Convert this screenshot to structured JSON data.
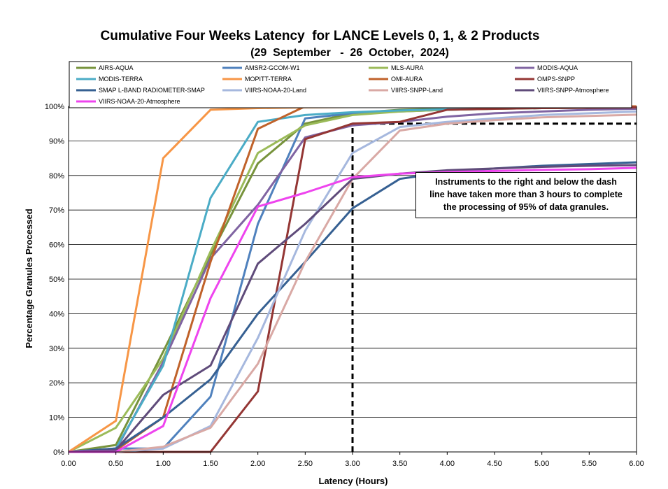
{
  "chart_data": {
    "type": "line",
    "title": "Cumulative Four Weeks Latency  for LANCE Levels 0, 1, & 2 Products",
    "subtitle": "(29  September   -  26  October,  2024)",
    "xlabel": "Latency (Hours)",
    "ylabel": "Percentage Granules Processed",
    "xlim": [
      0,
      6
    ],
    "ylim": [
      0,
      100
    ],
    "x_ticks": [
      "0.00",
      "0.50",
      "1.00",
      "1.50",
      "2.00",
      "2.50",
      "3.00",
      "3.50",
      "4.00",
      "4.50",
      "5.00",
      "5.50",
      "6.00"
    ],
    "y_ticks": [
      "0%",
      "10%",
      "20%",
      "30%",
      "40%",
      "50%",
      "60%",
      "70%",
      "80%",
      "90%",
      "100%"
    ],
    "grid": "horizontal",
    "legend_position": "top",
    "x": [
      0,
      0.5,
      1.0,
      1.5,
      2.0,
      2.5,
      3.0,
      3.5,
      4.0,
      4.5,
      5.0,
      5.5,
      6.0
    ],
    "series": [
      {
        "name": "AIRS-AQUA",
        "color": "#77933c",
        "values": [
          0,
          2,
          29,
          57,
          83.5,
          95,
          98,
          99,
          99.4,
          99.6,
          99.7,
          99.8,
          99.9
        ]
      },
      {
        "name": "AMSR2-GCOM-W1",
        "color": "#4f81bd",
        "values": [
          0,
          1,
          1,
          16,
          66,
          96.5,
          98,
          98.5,
          99,
          99.3,
          99.5,
          99.6,
          99.7
        ]
      },
      {
        "name": "MLS-AURA",
        "color": "#9bbb59",
        "values": [
          0,
          7,
          27,
          58,
          86.5,
          94.5,
          97.5,
          98.5,
          99,
          99.3,
          99.5,
          99.6,
          99.7
        ]
      },
      {
        "name": "MODIS-AQUA",
        "color": "#8064a2",
        "values": [
          0,
          0.5,
          26,
          56,
          71.5,
          91,
          94.5,
          95.5,
          97,
          98,
          98.5,
          99,
          99.3
        ]
      },
      {
        "name": "MODIS-TERRA",
        "color": "#4bacc6",
        "values": [
          0,
          1,
          25,
          73.5,
          95.5,
          97.5,
          98.3,
          98.8,
          99.2,
          99.4,
          99.6,
          99.7,
          99.8
        ]
      },
      {
        "name": "MOPITT-TERRA",
        "color": "#f79646",
        "values": [
          0,
          9,
          85,
          99,
          99.5,
          99.7,
          99.8,
          99.9,
          99.9,
          100,
          100,
          100,
          100
        ]
      },
      {
        "name": "OMI-AURA",
        "color": "#c0622a",
        "values": [
          0,
          0.5,
          10,
          55,
          93.5,
          100,
          100,
          100,
          100,
          100,
          100,
          100,
          100
        ]
      },
      {
        "name": "OMPS-SNPP",
        "color": "#943634",
        "values": [
          0,
          0,
          0,
          0,
          17.5,
          90.5,
          95,
          95.5,
          99,
          99.3,
          99.5,
          99.6,
          99.7
        ]
      },
      {
        "name": "SMAP L-BAND RADIOMETER-SMAP",
        "color": "#366092",
        "values": [
          0,
          1,
          10,
          21,
          40,
          55,
          70.5,
          79,
          81,
          82,
          82.8,
          83.3,
          83.8
        ]
      },
      {
        "name": "VIIRS-NOAA-20-Land",
        "color": "#a6b8de",
        "values": [
          0,
          0,
          1,
          7.5,
          33,
          64,
          86.5,
          94,
          95.5,
          96.5,
          97.5,
          98,
          98.5
        ]
      },
      {
        "name": "VIIRS-SNPP-Land",
        "color": "#d9a9a5",
        "values": [
          0,
          0,
          1.5,
          7,
          25.5,
          55,
          79,
          93,
          95,
          96,
          96.8,
          97.2,
          97.6
        ]
      },
      {
        "name": "VIIRS-SNPP-Atmosphere",
        "color": "#5f4b7a",
        "values": [
          0,
          0.5,
          16.5,
          25,
          54.5,
          66,
          79,
          80.5,
          81.5,
          82,
          82.5,
          82.8,
          83
        ]
      },
      {
        "name": "VIIRS-NOAA-20-Atmosphere",
        "color": "#ee44ee",
        "values": [
          0,
          0,
          7.5,
          44.5,
          71,
          75,
          79.5,
          80.5,
          81,
          81.3,
          81.6,
          81.8,
          82.2
        ]
      }
    ],
    "annotations": {
      "threshold_x": 3.0,
      "threshold_y": 95,
      "text": "Instruments to the right and below the dash line have taken more than 3 hours to complete the processing of 95% of data granules."
    }
  },
  "annotation_lines": [
    "Instruments to the right and below the dash",
    "line have taken more than 3 hours to complete",
    "the processing of 95% of data granules."
  ]
}
